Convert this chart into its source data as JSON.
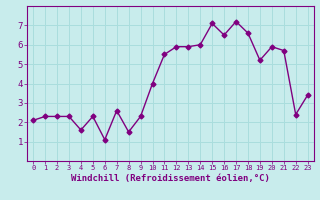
{
  "x": [
    0,
    1,
    2,
    3,
    4,
    5,
    6,
    7,
    8,
    9,
    10,
    11,
    12,
    13,
    14,
    15,
    16,
    17,
    18,
    19,
    20,
    21,
    22,
    23
  ],
  "y": [
    2.1,
    2.3,
    2.3,
    2.3,
    1.6,
    2.3,
    1.1,
    2.6,
    1.5,
    2.3,
    4.0,
    5.5,
    5.9,
    5.9,
    6.0,
    7.1,
    6.5,
    7.2,
    6.6,
    5.2,
    5.9,
    5.7,
    2.4,
    3.4
  ],
  "line_color": "#800080",
  "marker": "D",
  "marker_size": 2.5,
  "linewidth": 1.0,
  "xlabel": "Windchill (Refroidissement éolien,°C)",
  "ylim": [
    0,
    8
  ],
  "xlim": [
    -0.5,
    23.5
  ],
  "yticks": [
    1,
    2,
    3,
    4,
    5,
    6,
    7
  ],
  "xticks": [
    0,
    1,
    2,
    3,
    4,
    5,
    6,
    7,
    8,
    9,
    10,
    11,
    12,
    13,
    14,
    15,
    16,
    17,
    18,
    19,
    20,
    21,
    22,
    23
  ],
  "bg_color": "#c8ecec",
  "grid_color": "#aadddd",
  "tick_color": "#800080",
  "xlabel_color": "#800080",
  "xlabel_fontsize": 6.5,
  "tick_fontsize_x": 5.0,
  "tick_fontsize_y": 6.5
}
